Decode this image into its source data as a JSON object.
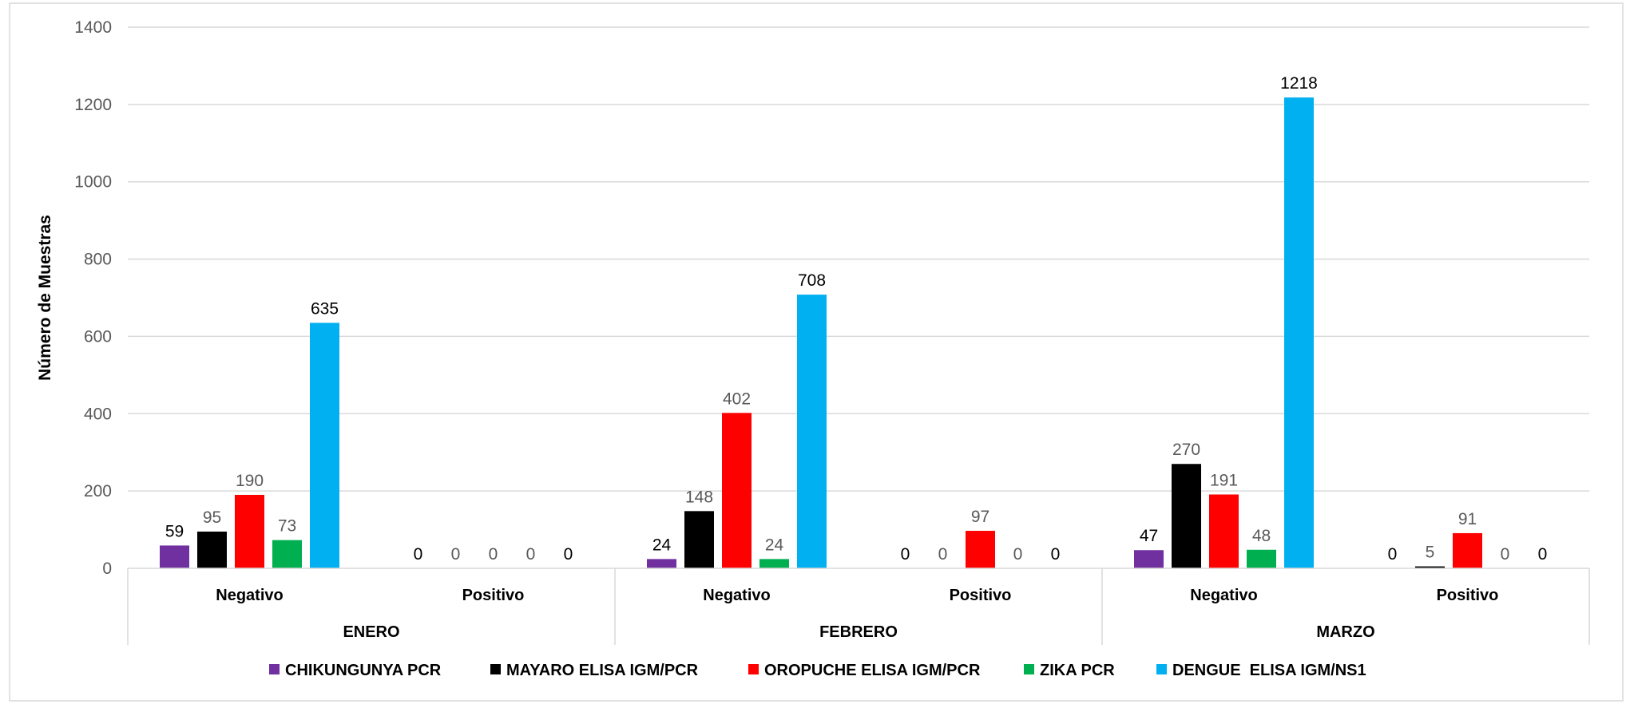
{
  "chart_data": {
    "type": "bar",
    "title": "",
    "ylabel": "Número de Muestras",
    "xlabel": "",
    "ylim": [
      0,
      1400
    ],
    "yticks": [
      0,
      200,
      400,
      600,
      800,
      1000,
      1200,
      1400
    ],
    "grid": true,
    "legend_position": "bottom",
    "groups": [
      "ENERO",
      "FEBRERO",
      "MARZO"
    ],
    "subcategories": [
      "Negativo",
      "Positivo"
    ],
    "categories": [
      "ENERO Negativo",
      "ENERO Positivo",
      "FEBRERO Negativo",
      "FEBRERO Positivo",
      "MARZO Negativo",
      "MARZO Positivo"
    ],
    "series": [
      {
        "name": "CHIKUNGUNYA PCR",
        "color": "#7030A0",
        "values": [
          59,
          0,
          24,
          0,
          47,
          0
        ]
      },
      {
        "name": "MAYARO ELISA IGM/PCR",
        "color": "#000000",
        "values": [
          95,
          0,
          148,
          0,
          270,
          5
        ]
      },
      {
        "name": "OROPUCHE ELISA IGM/PCR",
        "color": "#FF0000",
        "values": [
          190,
          0,
          402,
          97,
          191,
          91
        ]
      },
      {
        "name": "ZIKA PCR",
        "color": "#00B050",
        "values": [
          73,
          0,
          24,
          0,
          48,
          0
        ]
      },
      {
        "name": "DENGUE  ELISA IGM/NS1",
        "color": "#00B0F0",
        "values": [
          635,
          0,
          708,
          0,
          1218,
          0
        ]
      }
    ],
    "data_label_colors": {
      "ENERO Negativo": [
        "#000000",
        "#595959",
        "#595959",
        "#595959",
        "#000000"
      ],
      "ENERO Positivo": [
        "#000000",
        "#595959",
        "#595959",
        "#595959",
        "#000000"
      ],
      "FEBRERO Negativo": [
        "#000000",
        "#595959",
        "#595959",
        "#595959",
        "#000000"
      ],
      "FEBRERO Positivo": [
        "#000000",
        "#595959",
        "#595959",
        "#595959",
        "#000000"
      ],
      "MARZO Negativo": [
        "#000000",
        "#595959",
        "#595959",
        "#595959",
        "#000000"
      ],
      "MARZO Positivo": [
        "#000000",
        "#595959",
        "#595959",
        "#595959",
        "#000000"
      ]
    }
  }
}
